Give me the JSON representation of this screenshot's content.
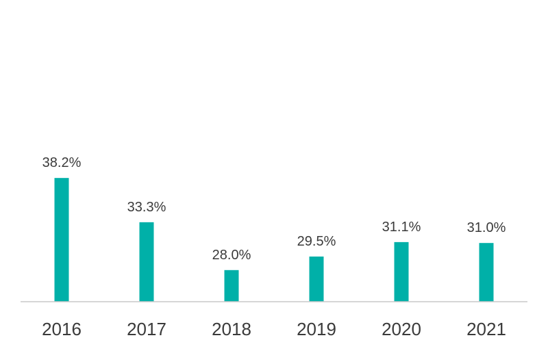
{
  "chart_data": {
    "type": "bar",
    "categories": [
      "2016",
      "2017",
      "2018",
      "2019",
      "2020",
      "2021"
    ],
    "values": [
      38.2,
      33.3,
      28.0,
      29.5,
      31.1,
      31.0
    ],
    "data_labels": [
      "38.2%",
      "33.3%",
      "28.0%",
      "29.5%",
      "31.1%",
      "31.0%"
    ],
    "title": "",
    "xlabel": "",
    "ylabel": "",
    "y_axis_visible": false,
    "grid": false,
    "legend": "none",
    "bar_color": "#00b0a8",
    "axis_color": "#c8c8c8",
    "text_color": "#3a3a3a"
  }
}
